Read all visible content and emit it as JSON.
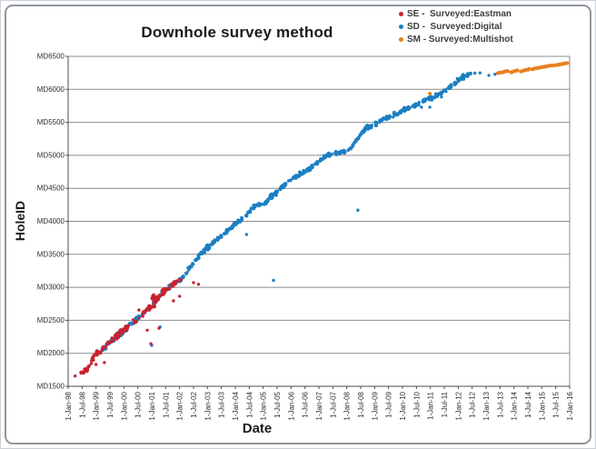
{
  "title": "Downhole survey method",
  "axes": {
    "x_title": "Date",
    "y_title": "HoleID"
  },
  "legend": {
    "position": "top-right",
    "items": [
      {
        "key": "SE",
        "label": "SE -  Surveyed:Eastman",
        "color": "#c8222f"
      },
      {
        "key": "SD",
        "label": "SD -  Surveyed:Digital",
        "color": "#1c7fc2"
      },
      {
        "key": "SM",
        "label": "SM - Surveyed:Multishot",
        "color": "#e8811f"
      }
    ]
  },
  "chart_data": {
    "type": "scatter",
    "title": "Downhole survey method",
    "xlabel": "Date",
    "ylabel": "HoleID",
    "grid": "horizontal-only",
    "legend_position": "top-right",
    "x_domain_years": [
      1998.0,
      2016.0
    ],
    "x_tick_labels": [
      "1-Jan-98",
      "1-Jul-98",
      "1-Jan-99",
      "1-Jul-99",
      "1-Jan-00",
      "1-Jul-00",
      "1-Jan-01",
      "1-Jul-01",
      "1-Jan-02",
      "1-Jul-02",
      "1-Jan-03",
      "1-Jul-03",
      "1-Jan-04",
      "1-Jul-04",
      "1-Jan-05",
      "1-Jul-05",
      "1-Jan-06",
      "1-Jul-06",
      "1-Jan-07",
      "1-Jul-07",
      "1-Jan-08",
      "1-Jul-08",
      "1-Jan-09",
      "1-Jul-09",
      "1-Jan-10",
      "1-Jul-10",
      "1-Jan-11",
      "1-Jul-11",
      "1-Jan-12",
      "1-Jul-12",
      "1-Jan-13",
      "1-Jul-13",
      "1-Jan-14",
      "1-Jul-14",
      "1-Jan-15",
      "1-Jul-15",
      "1-Jan-16"
    ],
    "y_domain": [
      1500,
      6500
    ],
    "y_tick_values": [
      6500,
      6000,
      5500,
      5000,
      4500,
      4000,
      3500,
      3000,
      2500,
      2000,
      1500
    ],
    "y_tick_labels": [
      "MD6500",
      "MD6000",
      "MD5500",
      "MD5000",
      "MD4500",
      "MD4000",
      "MD3500",
      "MD3000",
      "MD2500",
      "MD2000",
      "MD1500"
    ],
    "trend_anchors": [
      [
        1998.4,
        1665
      ],
      [
        1998.7,
        1760
      ],
      [
        1999.0,
        1990
      ],
      [
        1999.5,
        2170
      ],
      [
        2000.0,
        2350
      ],
      [
        2000.5,
        2530
      ],
      [
        2001.0,
        2715
      ],
      [
        2001.5,
        2965
      ],
      [
        2002.1,
        3140
      ],
      [
        2002.8,
        3525
      ],
      [
        2003.4,
        3745
      ],
      [
        2004.1,
        3995
      ],
      [
        2004.7,
        4230
      ],
      [
        2005.1,
        4290
      ],
      [
        2005.5,
        4450
      ],
      [
        2006.0,
        4640
      ],
      [
        2006.6,
        4780
      ],
      [
        2007.3,
        5000
      ],
      [
        2008.1,
        5080
      ],
      [
        2008.65,
        5400
      ],
      [
        2009.3,
        5540
      ],
      [
        2009.9,
        5660
      ],
      [
        2010.5,
        5770
      ],
      [
        2011.0,
        5870
      ],
      [
        2011.5,
        5965
      ],
      [
        2011.9,
        6100
      ],
      [
        2012.2,
        6195
      ],
      [
        2012.45,
        6255
      ]
    ],
    "series": [
      {
        "name": "SD - Surveyed:Digital",
        "color": "#1c7fc2",
        "band": {
          "t_start": 1999.2,
          "t_end": 2012.45,
          "n": 540,
          "t_jitter": 0.035,
          "md_jitter": 46
        },
        "clusters": [
          {
            "t": 2000.45,
            "md": 2505,
            "n": 10,
            "st": 0.05,
            "smd": 40
          },
          {
            "t": 2003.0,
            "md": 3620,
            "n": 8,
            "st": 0.05,
            "smd": 40
          },
          {
            "t": 2005.3,
            "md": 4390,
            "n": 10,
            "st": 0.06,
            "smd": 45
          },
          {
            "t": 2011.7,
            "md": 6030,
            "n": 8,
            "st": 0.06,
            "smd": 45
          },
          {
            "t": 2012.15,
            "md": 6180,
            "n": 12,
            "st": 0.08,
            "smd": 55
          }
        ],
        "tail_points": [
          [
            2012.6,
            6245
          ],
          [
            2012.78,
            6250
          ],
          [
            2013.1,
            6212
          ],
          [
            2013.32,
            6228
          ]
        ],
        "outliers": [
          [
            2001.0,
            2120
          ],
          [
            2001.3,
            2400
          ],
          [
            2004.4,
            3800
          ],
          [
            2005.37,
            3105
          ],
          [
            2008.4,
            4170
          ],
          [
            2009.67,
            5580
          ],
          [
            2010.45,
            5730
          ],
          [
            2010.68,
            5730
          ],
          [
            2010.98,
            5730
          ],
          [
            2011.4,
            5885
          ]
        ]
      },
      {
        "name": "SE - Surveyed:Eastman",
        "color": "#c8222f",
        "band": {
          "t_start": 1998.42,
          "t_end": 2002.05,
          "n": 120,
          "t_jitter": 0.05,
          "md_jitter": 58,
          "thin_gap": [
            2000.15,
            2000.65,
            0.6
          ]
        },
        "clusters": [
          {
            "t": 1998.65,
            "md": 1755,
            "n": 12,
            "st": 0.08,
            "smd": 50
          },
          {
            "t": 1999.9,
            "md": 2330,
            "n": 8,
            "st": 0.06,
            "smd": 45
          },
          {
            "t": 2001.1,
            "md": 2835,
            "n": 14,
            "st": 0.1,
            "smd": 70
          },
          {
            "t": 2001.45,
            "md": 2950,
            "n": 10,
            "st": 0.08,
            "smd": 60
          }
        ],
        "tail_points": [],
        "outliers": [
          [
            1998.25,
            1655
          ],
          [
            1999.0,
            1830
          ],
          [
            1999.3,
            1860
          ],
          [
            2000.54,
            2655
          ],
          [
            2000.84,
            2350
          ],
          [
            2000.97,
            2145
          ],
          [
            2001.26,
            2380
          ],
          [
            2001.78,
            2795
          ],
          [
            2002.0,
            2865
          ],
          [
            2002.5,
            3070
          ],
          [
            2002.68,
            3045
          ]
        ]
      },
      {
        "name": "SM - Surveyed:Multishot",
        "color": "#e8811f",
        "segments": [
          {
            "t0": 2013.42,
            "t1": 2013.78,
            "md0": 6245,
            "md1": 6278,
            "n": 10
          },
          {
            "t0": 2013.9,
            "t1": 2014.12,
            "md0": 6258,
            "md1": 6292,
            "n": 7
          },
          {
            "t0": 2014.25,
            "t1": 2014.55,
            "md0": 6270,
            "md1": 6308,
            "n": 8
          },
          {
            "t0": 2014.66,
            "t1": 2015.38,
            "md0": 6310,
            "md1": 6365,
            "n": 20
          },
          {
            "t0": 2015.45,
            "t1": 2015.92,
            "md0": 6362,
            "md1": 6398,
            "n": 13
          }
        ],
        "outliers": [
          [
            2010.98,
            5935
          ]
        ]
      }
    ]
  },
  "layout_colors": {
    "gridline": "#8c8c8c",
    "axis_line": "#4d4d4d",
    "tick_label": "#2a2f38",
    "frame_border": "#8f969d",
    "background": "#ffffff"
  }
}
